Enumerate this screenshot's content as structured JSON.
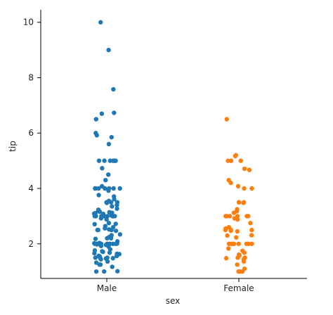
{
  "chart_data": {
    "type": "scatter",
    "xlabel": "sex",
    "ylabel": "tip",
    "categories": [
      "Male",
      "Female"
    ],
    "ylim": [
      0.75,
      10.45
    ],
    "y_ticks": [
      2,
      4,
      6,
      8,
      10
    ],
    "grid": false,
    "series": [
      {
        "category": "Male",
        "color": "#1f77b4",
        "values": [
          10.0,
          9.0,
          7.58,
          6.73,
          6.7,
          6.5,
          6.0,
          5.92,
          5.85,
          5.6,
          5.0,
          5.0,
          5.0,
          5.0,
          5.0,
          5.0,
          4.73,
          4.5,
          4.3,
          4.08,
          4.0,
          4.0,
          4.0,
          4.0,
          4.0,
          4.0,
          4.0,
          4.0,
          3.92,
          3.76,
          3.71,
          3.61,
          3.55,
          3.5,
          3.5,
          3.5,
          3.48,
          3.4,
          3.35,
          3.27,
          3.23,
          3.18,
          3.16,
          3.14,
          3.12,
          3.11,
          3.09,
          3.08,
          3.02,
          3.0,
          3.0,
          3.0,
          3.0,
          3.0,
          3.0,
          3.0,
          3.0,
          3.0,
          2.92,
          2.88,
          2.75,
          2.72,
          2.71,
          2.64,
          2.6,
          2.56,
          2.52,
          2.5,
          2.5,
          2.5,
          2.47,
          2.34,
          2.31,
          2.24,
          2.2,
          2.2,
          2.18,
          2.09,
          2.03,
          2.02,
          2.01,
          2.0,
          2.0,
          2.0,
          2.0,
          2.0,
          2.0,
          2.0,
          2.0,
          2.0,
          2.0,
          2.0,
          2.0,
          1.98,
          1.96,
          1.92,
          1.9,
          1.8,
          1.76,
          1.73,
          1.71,
          1.68,
          1.66,
          1.64,
          1.63,
          1.57,
          1.56,
          1.55,
          1.5,
          1.5,
          1.5,
          1.48,
          1.47,
          1.44,
          1.36,
          1.32,
          1.25,
          1.25,
          1.17,
          1.01,
          1.0,
          1.0
        ]
      },
      {
        "category": "Female",
        "color": "#ff7f0e",
        "values": [
          6.5,
          5.2,
          5.17,
          5.0,
          5.0,
          5.0,
          4.71,
          4.67,
          4.3,
          4.2,
          4.08,
          4.0,
          4.0,
          3.5,
          3.5,
          3.5,
          3.48,
          3.25,
          3.18,
          3.12,
          3.0,
          3.0,
          3.0,
          3.0,
          3.0,
          3.0,
          2.92,
          2.88,
          2.75,
          2.6,
          2.55,
          2.5,
          2.5,
          2.5,
          2.47,
          2.45,
          2.31,
          2.3,
          2.23,
          2.0,
          2.0,
          2.0,
          2.0,
          2.0,
          2.0,
          2.0,
          2.0,
          2.0,
          1.83,
          1.75,
          1.68,
          1.61,
          1.58,
          1.5,
          1.5,
          1.48,
          1.44,
          1.36,
          1.25,
          1.1,
          1.0,
          1.0,
          1.0
        ]
      }
    ]
  }
}
